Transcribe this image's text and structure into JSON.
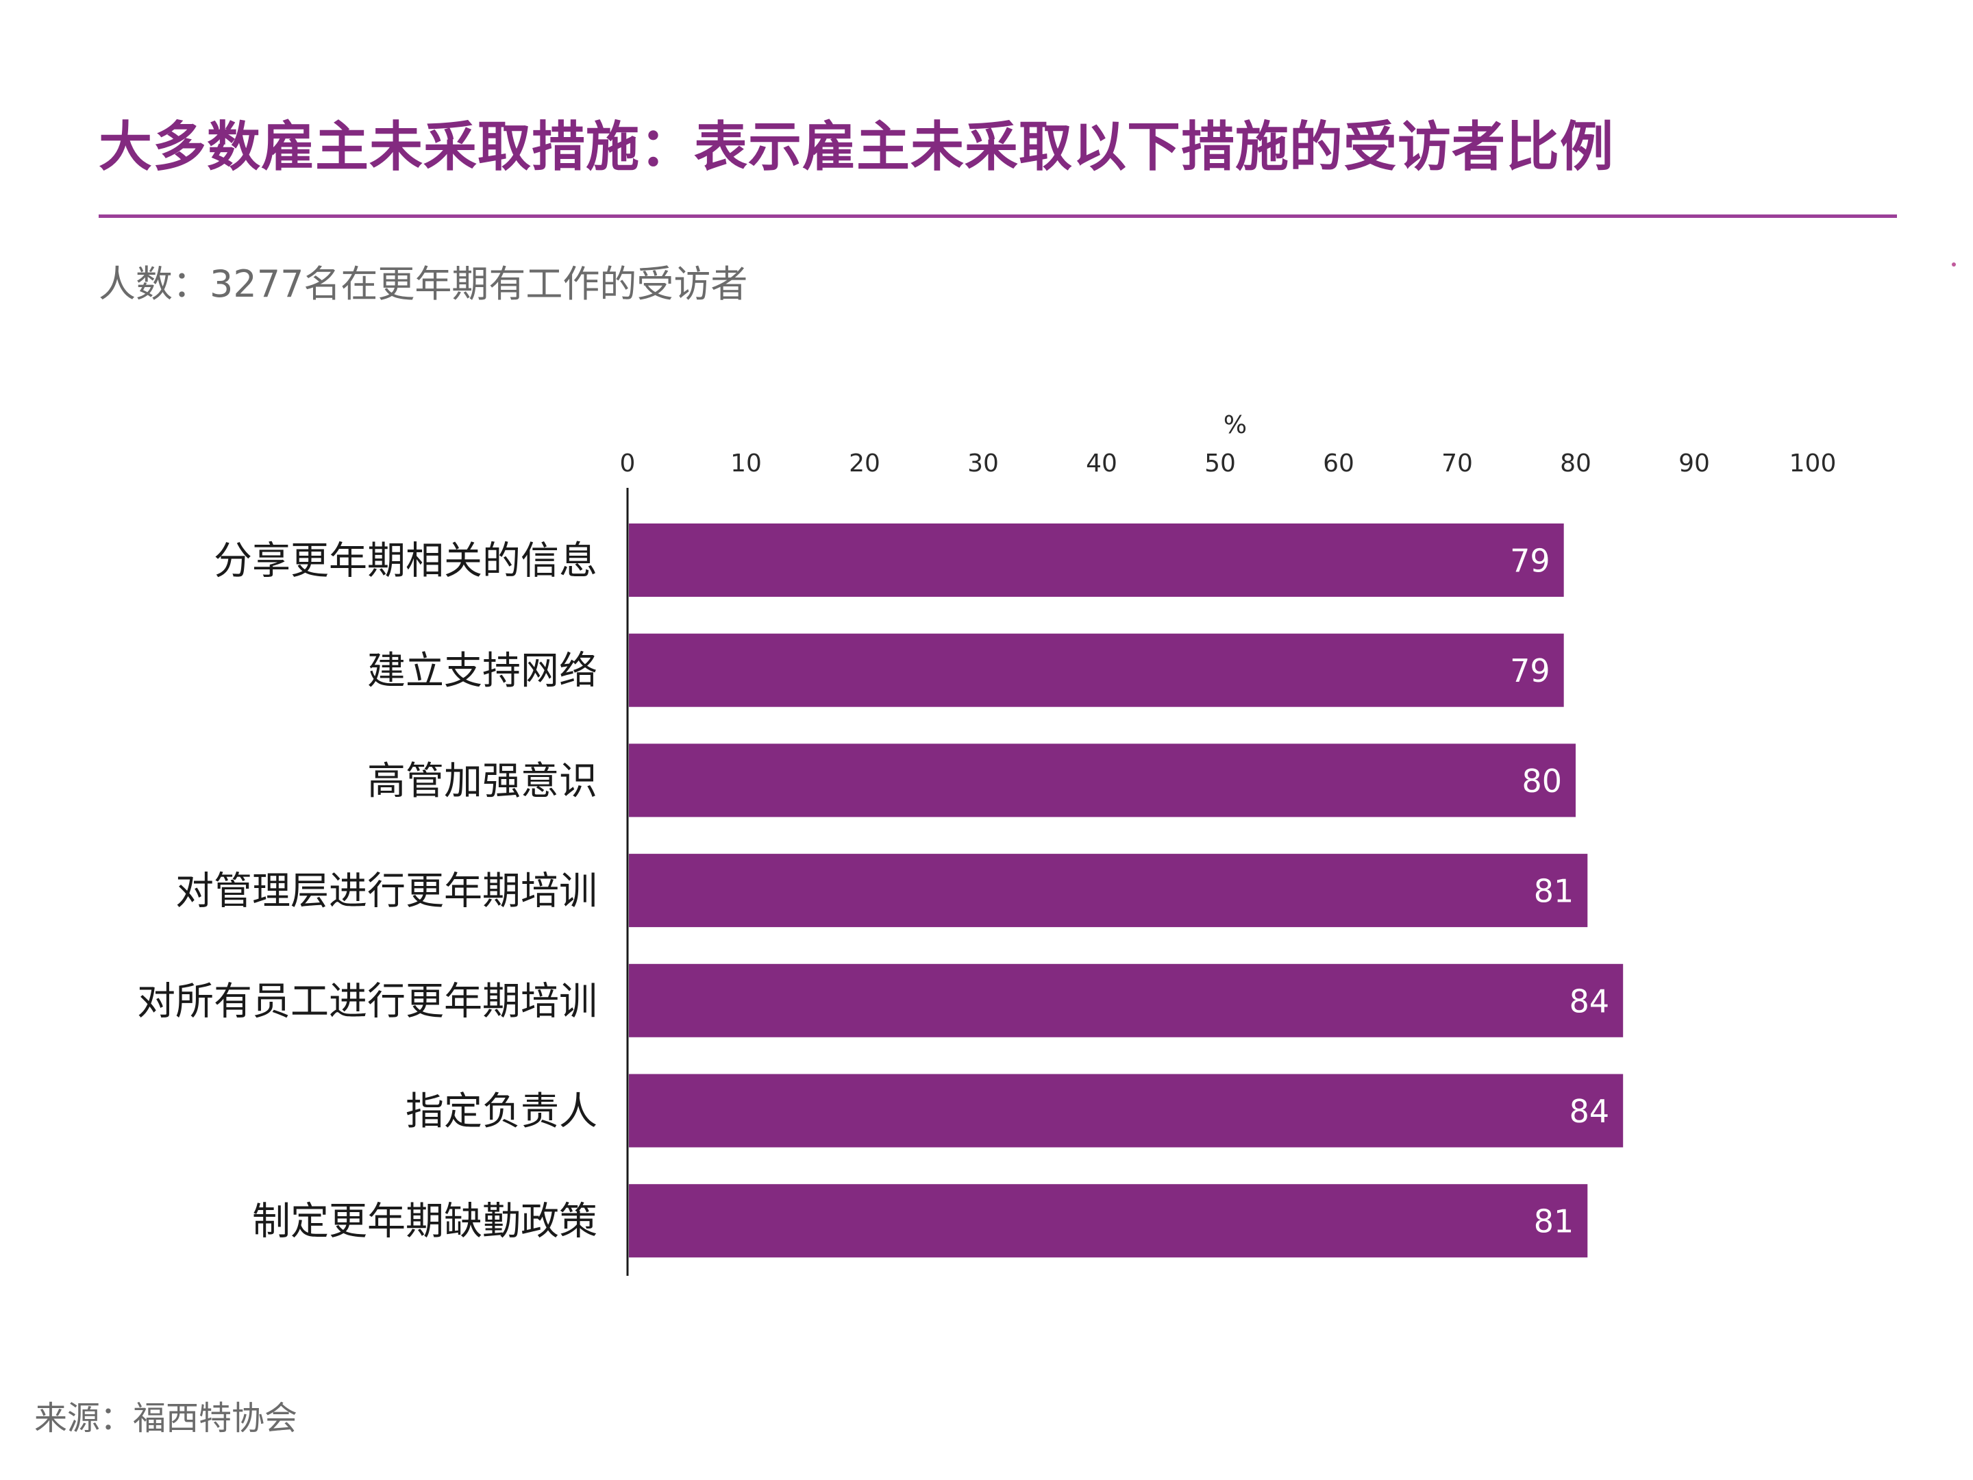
{
  "title": "大多数雇主未采取措施：表示雇主未采取以下措施的受访者比例",
  "subtitle": "人数：3277名在更年期有工作的受访者",
  "source": "来源：福西特协会",
  "colors": {
    "bar": "#832a80",
    "title": "#832a80",
    "rule": "#9b3f98"
  },
  "chart_data": {
    "type": "bar",
    "orientation": "horizontal",
    "unit_label": "%",
    "xlim": [
      0,
      100
    ],
    "ticks": [
      "0",
      "10",
      "20",
      "30",
      "40",
      "50",
      "60",
      "70",
      "80",
      "90",
      "100"
    ],
    "axis_position": "top",
    "grid": false,
    "categories": [
      "分享更年期相关的信息",
      "建立支持网络",
      "高管加强意识",
      "对管理层进行更年期培训",
      "对所有员工进行更年期培训",
      "指定负责人",
      "制定更年期缺勤政策"
    ],
    "values": [
      79,
      79,
      80,
      81,
      84,
      84,
      81
    ],
    "value_labels": [
      "79",
      "79",
      "80",
      "81",
      "84",
      "84",
      "81"
    ]
  }
}
